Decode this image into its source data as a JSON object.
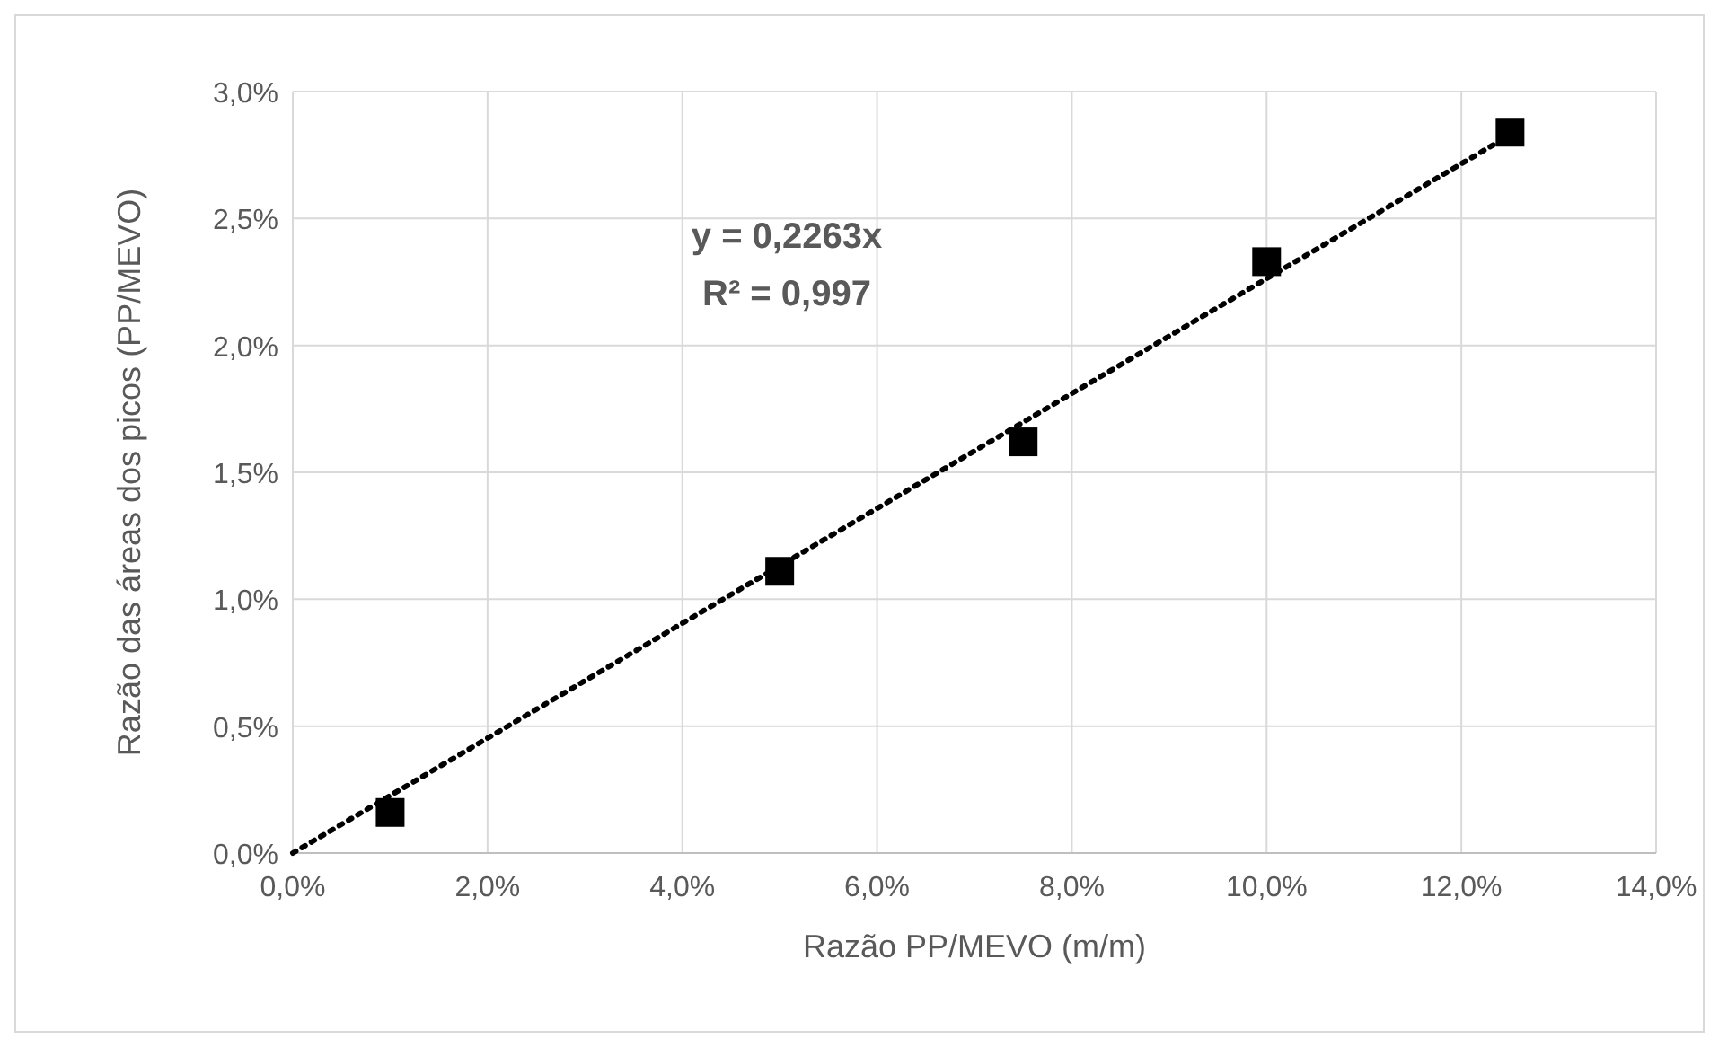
{
  "chart_data": {
    "type": "scatter",
    "xlabel": "Razão PP/MEVO (m/m)",
    "ylabel": "Razão das áreas dos picos (PP/MEVO)",
    "series": [
      {
        "color": "#000000",
        "marker": "square",
        "x": [
          1,
          5,
          7.5,
          10,
          12.5
        ],
        "values": [
          0.16,
          1.11,
          1.62,
          2.33,
          2.84
        ]
      },
      {
        "type": "line",
        "color": "#000000",
        "marker": "none",
        "line_style": "dotted",
        "x": [
          0,
          12.5
        ],
        "values": [
          0,
          2.829
        ]
      }
    ],
    "annotations": [
      "y = 0,2263x",
      "R² = 0,997"
    ],
    "xlim": [
      0,
      14
    ],
    "ylim": [
      0,
      3
    ],
    "xticks": [
      {
        "value": 0,
        "label": "0,0%"
      },
      {
        "value": 2,
        "label": "2,0%"
      },
      {
        "value": 4,
        "label": "4,0%"
      },
      {
        "value": 6,
        "label": "6,0%"
      },
      {
        "value": 8,
        "label": "8,0%"
      },
      {
        "value": 10,
        "label": "10,0%"
      },
      {
        "value": 12,
        "label": "12,0%"
      },
      {
        "value": 14,
        "label": "14,0%"
      }
    ],
    "yticks": [
      {
        "value": 0,
        "label": "0,0%"
      },
      {
        "value": 0.5,
        "label": "0,5%"
      },
      {
        "value": 1,
        "label": "1,0%"
      },
      {
        "value": 1.5,
        "label": "1,5%"
      },
      {
        "value": 2,
        "label": "2,0%"
      },
      {
        "value": 2.5,
        "label": "2,5%"
      },
      {
        "value": 3,
        "label": "3,0%"
      }
    ],
    "grid": true
  }
}
